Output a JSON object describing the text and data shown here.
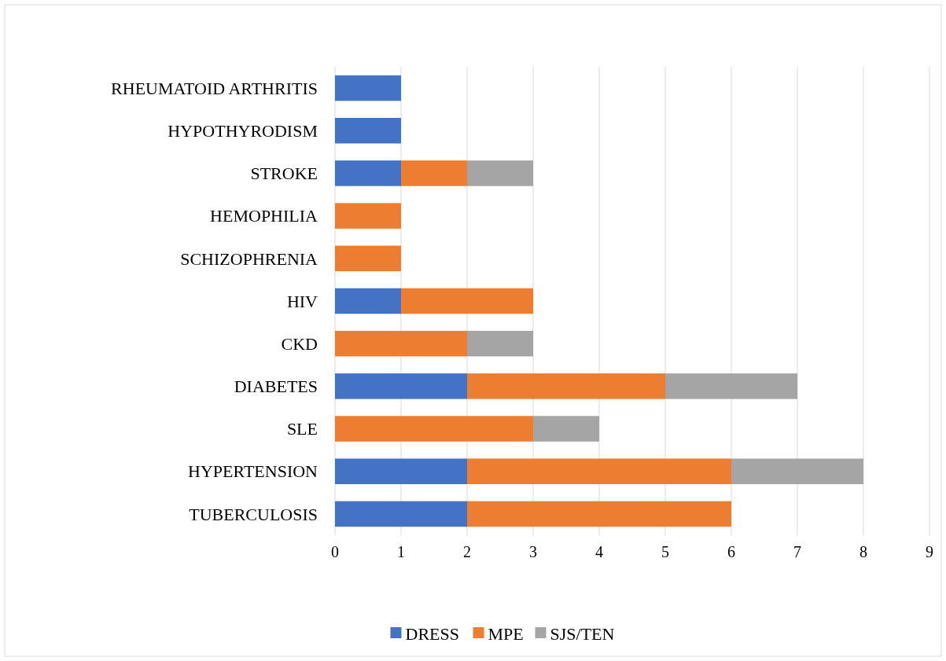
{
  "chart_data": {
    "type": "bar",
    "orientation": "horizontal",
    "stacked": true,
    "categories": [
      "RHEUMATOID ARTHRITIS",
      "HYPOTHYRODISM",
      "STROKE",
      "HEMOPHILIA",
      "SCHIZOPHRENIA",
      "HIV",
      "CKD",
      "DIABETES",
      "SLE",
      "HYPERTENSION",
      "TUBERCULOSIS"
    ],
    "series": [
      {
        "name": "DRESS",
        "color": "#4472c4",
        "values": [
          1,
          1,
          1,
          0,
          0,
          1,
          0,
          2,
          0,
          2,
          2
        ]
      },
      {
        "name": "MPE",
        "color": "#ed7d31",
        "values": [
          0,
          0,
          1,
          1,
          1,
          2,
          2,
          3,
          3,
          4,
          4
        ]
      },
      {
        "name": "SJS/TEN",
        "color": "#a5a5a5",
        "values": [
          0,
          0,
          1,
          0,
          0,
          0,
          1,
          2,
          1,
          2,
          0
        ]
      }
    ],
    "xlim": [
      0,
      9
    ],
    "xticks": [
      0,
      1,
      2,
      3,
      4,
      5,
      6,
      7,
      8,
      9
    ],
    "grid": "x",
    "legend": "bottom"
  }
}
